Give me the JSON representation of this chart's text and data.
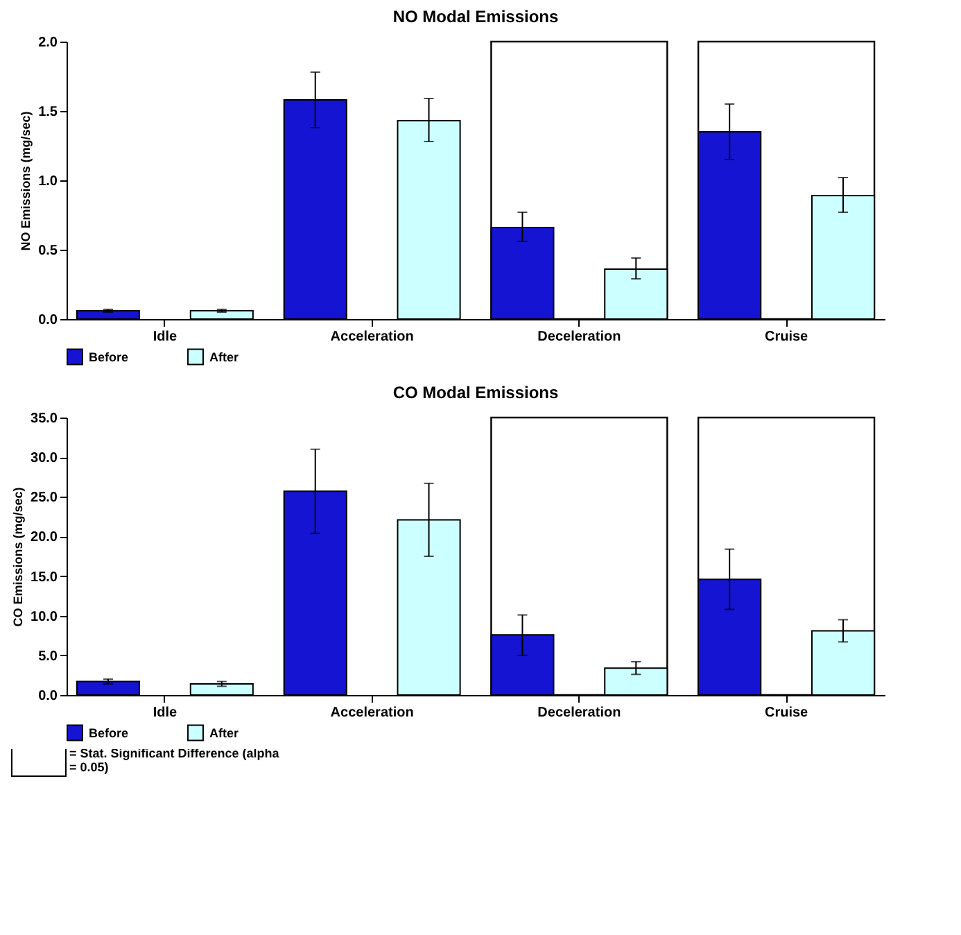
{
  "chart_data": [
    {
      "type": "bar",
      "title": "NO Modal Emissions",
      "ylabel": "NO Emissions (mg/sec)",
      "categories": [
        "Idle",
        "Acceleration",
        "Deceleration",
        "Cruise"
      ],
      "series": [
        {
          "name": "Before",
          "color": "#1414d2",
          "values": [
            0.06,
            1.58,
            0.66,
            1.35
          ],
          "errors": [
            [
              0.05,
              0.07
            ],
            [
              1.38,
              1.78
            ],
            [
              0.56,
              0.77
            ],
            [
              1.15,
              1.55
            ]
          ]
        },
        {
          "name": "After",
          "color": "#ccffff",
          "values": [
            0.06,
            1.43,
            0.36,
            0.89
          ],
          "errors": [
            [
              0.05,
              0.07
            ],
            [
              1.28,
              1.59
            ],
            [
              0.29,
              0.44
            ],
            [
              0.77,
              1.02
            ]
          ]
        }
      ],
      "ylim": [
        0,
        2
      ],
      "yticks": [
        {
          "value": 0,
          "label": "0.0"
        },
        {
          "value": 0.5,
          "label": "0.5"
        },
        {
          "value": 1,
          "label": "1.0"
        },
        {
          "value": 1.5,
          "label": "1.5"
        },
        {
          "value": 2,
          "label": "2.0"
        }
      ],
      "bands": [
        {
          "axis": "x",
          "from": "Deceleration",
          "to": "Deceleration",
          "color": "#ffffff"
        },
        {
          "axis": "x",
          "from": "Cruise",
          "to": "Cruise",
          "color": "#ffffff"
        }
      ],
      "legend": "bottom",
      "grid": false
    },
    {
      "type": "bar",
      "title": "CO Modal Emissions",
      "ylabel": "CO Emissions (mg/sec)",
      "categories": [
        "Idle",
        "Acceleration",
        "Deceleration",
        "Cruise"
      ],
      "series": [
        {
          "name": "Before",
          "color": "#1414d2",
          "values": [
            1.7,
            25.7,
            7.6,
            14.6
          ],
          "errors": [
            [
              1.4,
              2.0
            ],
            [
              20.4,
              31.0
            ],
            [
              5.0,
              10.1
            ],
            [
              10.8,
              18.4
            ]
          ]
        },
        {
          "name": "After",
          "color": "#ccffff",
          "values": [
            1.4,
            22.1,
            3.4,
            8.1
          ],
          "errors": [
            [
              1.1,
              1.7
            ],
            [
              17.5,
              26.7
            ],
            [
              2.6,
              4.2
            ],
            [
              6.7,
              9.5
            ]
          ]
        }
      ],
      "ylim": [
        0,
        35
      ],
      "yticks": [
        {
          "value": 0,
          "label": "0.0"
        },
        {
          "value": 5,
          "label": "5.0"
        },
        {
          "value": 10,
          "label": "10.0"
        },
        {
          "value": 15,
          "label": "15.0"
        },
        {
          "value": 20,
          "label": "20.0"
        },
        {
          "value": 25,
          "label": "25.0"
        },
        {
          "value": 30,
          "label": "30.0"
        },
        {
          "value": 35,
          "label": "35.0"
        }
      ],
      "bands": [
        {
          "axis": "x",
          "from": "Deceleration",
          "to": "Deceleration",
          "color": "#ffffff"
        },
        {
          "axis": "x",
          "from": "Cruise",
          "to": "Cruise",
          "color": "#ffffff"
        }
      ],
      "annotations": [
        "= Stat. Significant Difference (alpha = 0.05)"
      ],
      "legend": "bottom",
      "grid": false
    }
  ]
}
